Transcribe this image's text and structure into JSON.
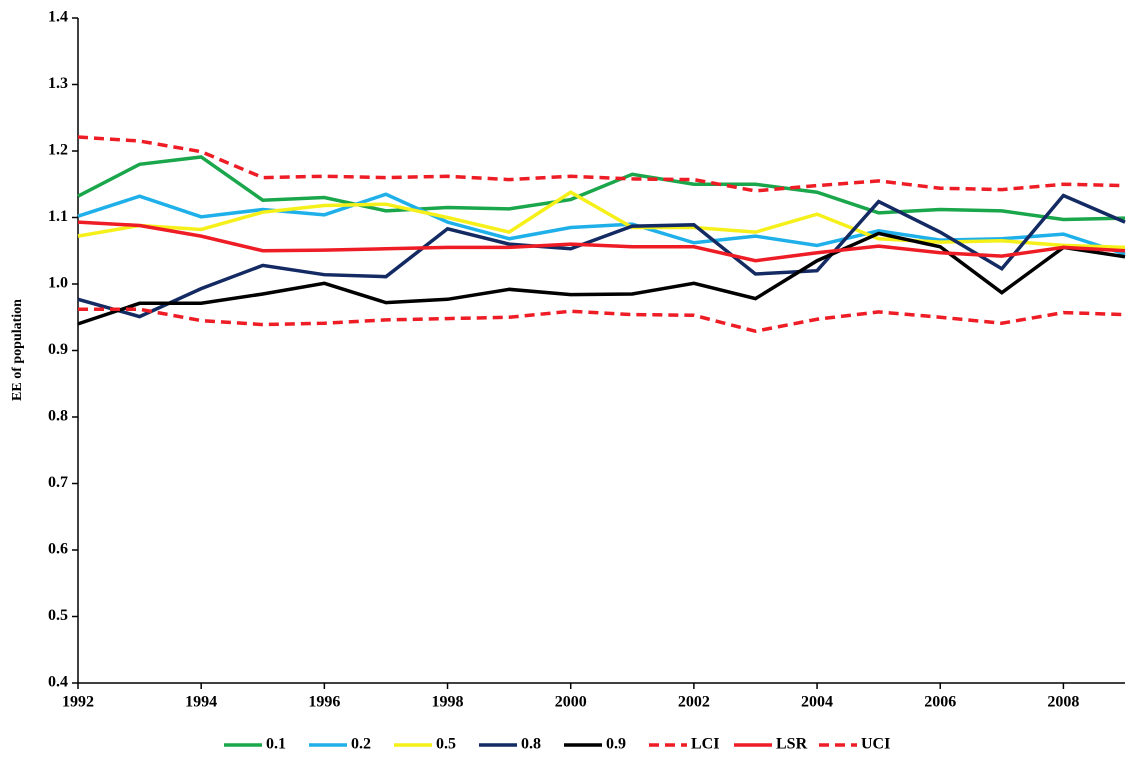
{
  "chart_data": {
    "type": "line",
    "y_label": "EE of population",
    "x": [
      1992,
      1993,
      1994,
      1995,
      1996,
      1997,
      1998,
      1999,
      2000,
      2001,
      2002,
      2003,
      2004,
      2005,
      2006,
      2007,
      2008,
      2009
    ],
    "xlim": [
      1992,
      2009
    ],
    "xticks": [
      1992,
      1994,
      1996,
      1998,
      2000,
      2002,
      2004,
      2006,
      2008
    ],
    "ylim": [
      0.4,
      1.4
    ],
    "yticks": [
      0.4,
      0.5,
      0.6,
      0.7,
      0.8,
      0.9,
      {
        "value": 1,
        "label": "1.0"
      },
      1.1,
      1.2,
      1.3,
      1.4
    ],
    "grid": false,
    "legend": "bottom",
    "series": [
      {
        "name": "0.1",
        "color": "#1aa64b",
        "style": "solid",
        "values": [
          1.132,
          1.18,
          1.191,
          1.126,
          1.13,
          1.11,
          1.115,
          1.113,
          1.127,
          1.165,
          1.15,
          1.15,
          1.138,
          1.107,
          1.112,
          1.11,
          1.097,
          1.099
        ]
      },
      {
        "name": "0.2",
        "color": "#1fb0ea",
        "style": "solid",
        "values": [
          1.102,
          1.132,
          1.101,
          1.112,
          1.104,
          1.135,
          1.093,
          1.068,
          1.085,
          1.09,
          1.062,
          1.072,
          1.058,
          1.08,
          1.066,
          1.068,
          1.075,
          1.045
        ]
      },
      {
        "name": "0.5",
        "color": "#f5f01a",
        "style": "solid",
        "values": [
          1.072,
          1.088,
          1.082,
          1.108,
          1.118,
          1.12,
          1.1,
          1.078,
          1.138,
          1.085,
          1.085,
          1.078,
          1.105,
          1.068,
          1.063,
          1.065,
          1.058,
          1.055
        ]
      },
      {
        "name": "0.8",
        "color": "#132a63",
        "style": "solid",
        "values": [
          0.977,
          0.951,
          0.993,
          1.028,
          1.014,
          1.011,
          1.083,
          1.06,
          1.053,
          1.087,
          1.089,
          1.015,
          1.02,
          1.124,
          1.078,
          1.023,
          1.133,
          1.093
        ]
      },
      {
        "name": "0.9",
        "color": "#000000",
        "style": "solid",
        "values": [
          0.94,
          0.971,
          0.971,
          0.985,
          1.001,
          0.972,
          0.977,
          0.992,
          0.984,
          0.985,
          1.001,
          0.978,
          1.035,
          1.076,
          1.056,
          0.987,
          1.055,
          1.041
        ]
      },
      {
        "name": "LCI",
        "color": "#ee1c24",
        "style": "dashed",
        "values": [
          0.962,
          0.962,
          0.945,
          0.939,
          0.941,
          0.946,
          0.948,
          0.95,
          0.959,
          0.954,
          0.953,
          0.929,
          0.947,
          0.958,
          0.95,
          0.941,
          0.957,
          0.954
        ]
      },
      {
        "name": "LSR",
        "color": "#ee1c24",
        "style": "solid",
        "values": [
          1.093,
          1.088,
          1.072,
          1.05,
          1.051,
          1.053,
          1.055,
          1.055,
          1.06,
          1.056,
          1.056,
          1.035,
          1.047,
          1.057,
          1.047,
          1.042,
          1.055,
          1.05
        ]
      },
      {
        "name": "UCI",
        "color": "#ee1c24",
        "style": "dashed",
        "values": [
          1.221,
          1.215,
          1.199,
          1.16,
          1.162,
          1.16,
          1.162,
          1.157,
          1.162,
          1.158,
          1.157,
          1.14,
          1.148,
          1.155,
          1.144,
          1.142,
          1.15,
          1.148
        ]
      }
    ]
  }
}
